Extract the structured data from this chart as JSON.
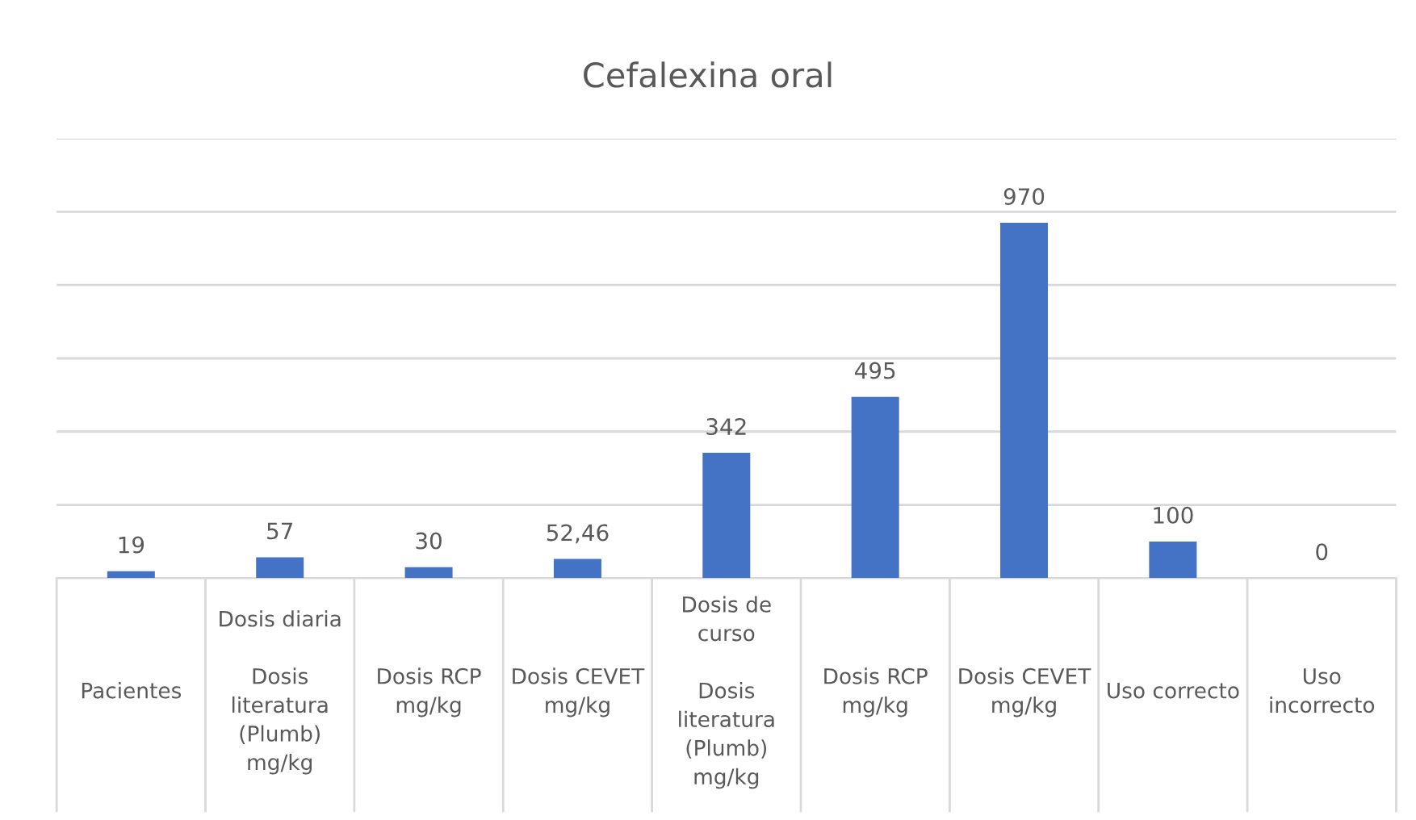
{
  "chart_data": {
    "type": "bar",
    "title": "Cefalexina oral",
    "categories": [
      "Pacientes",
      "Dosis diaria\n\nDosis\nliteratura\n(Plumb)\nmg/kg",
      "Dosis RCP\nmg/kg",
      "Dosis CEVET\nmg/kg",
      "Dosis de\ncurso\n\nDosis\nliteratura\n(Plumb)\nmg/kg",
      "Dosis RCP\nmg/kg",
      "Dosis CEVET\nmg/kg",
      "Uso correcto",
      "Uso\nincorrecto"
    ],
    "values": [
      19,
      57,
      30,
      52.46,
      342,
      495,
      970,
      100,
      0
    ],
    "value_labels": [
      "19",
      "57",
      "30",
      "52,46",
      "342",
      "495",
      "970",
      "100",
      "0"
    ],
    "color": "#4472c4",
    "ylim": [
      0,
      1200
    ],
    "yticks": [
      {
        "value": 0,
        "label": null
      },
      {
        "value": 200,
        "label": null
      },
      {
        "value": 400,
        "label": null
      },
      {
        "value": 600,
        "label": null
      },
      {
        "value": 800,
        "label": null
      },
      {
        "value": 1000,
        "label": null
      },
      {
        "value": 1200,
        "label": null
      }
    ],
    "tick_labels": "x",
    "grid": "y"
  }
}
